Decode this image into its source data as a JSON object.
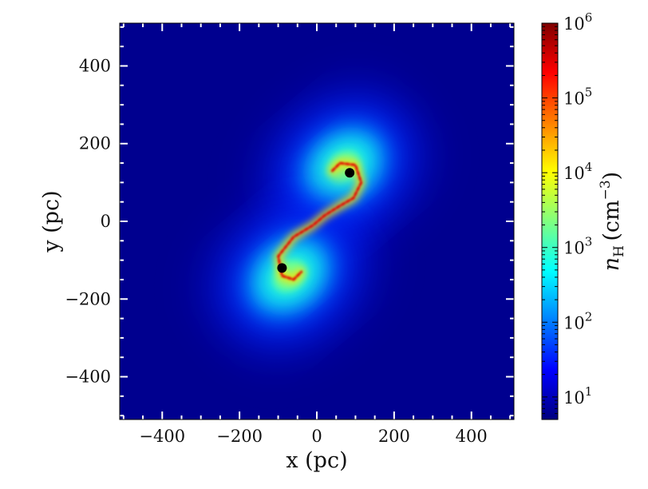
{
  "chart_data": {
    "type": "heatmap",
    "quantity": "gas number density",
    "xlabel": "x (pc)",
    "ylabel": "y (pc)",
    "xlim": [
      -510,
      510
    ],
    "ylim": [
      -510,
      510
    ],
    "xticks": [
      -400,
      -200,
      0,
      200,
      400
    ],
    "yticks": [
      -400,
      -200,
      0,
      200,
      400
    ],
    "xtick_labels": [
      "−400",
      "−200",
      "0",
      "200",
      "400"
    ],
    "ytick_labels": [
      "−400",
      "−200",
      "0",
      "200",
      "400"
    ],
    "colorbar": {
      "label": "n_H (cm^-3)",
      "scale": "log",
      "colormap": "jet",
      "range": [
        5,
        1000000
      ],
      "ticks": [
        10,
        100,
        1000,
        10000,
        100000,
        1000000
      ],
      "tick_labels": [
        "10^1",
        "10^2",
        "10^3",
        "10^4",
        "10^5",
        "10^6"
      ]
    },
    "background_value": 6,
    "lobes": [
      {
        "x": 70,
        "y": 140,
        "peak": 2000
      },
      {
        "x": -70,
        "y": -140,
        "peak": 2000
      }
    ],
    "dense_arms": [
      {
        "points": [
          [
            40,
            130
          ],
          [
            60,
            150
          ],
          [
            100,
            145
          ],
          [
            115,
            100
          ],
          [
            95,
            60
          ],
          [
            60,
            40
          ],
          [
            20,
            15
          ],
          [
            -10,
            -10
          ],
          [
            -60,
            -40
          ],
          [
            -100,
            -90
          ],
          [
            -90,
            -140
          ],
          [
            -60,
            -150
          ],
          [
            -40,
            -130
          ]
        ],
        "value": 300000
      }
    ],
    "black_holes": [
      {
        "x": 85,
        "y": 125
      },
      {
        "x": -90,
        "y": -120
      }
    ],
    "grid": false,
    "legend": "none"
  }
}
